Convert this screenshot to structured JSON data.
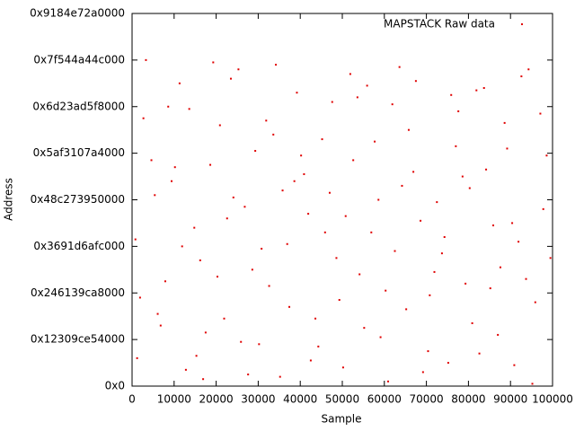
{
  "chart_data": {
    "type": "scatter",
    "x_label": "Sample",
    "y_label": "Address",
    "xlim": [
      0,
      100000
    ],
    "xticks": [
      0,
      10000,
      20000,
      30000,
      40000,
      50000,
      60000,
      70000,
      80000,
      90000,
      100000
    ],
    "ylim": [
      0,
      160000000000000.0
    ],
    "yticks": [
      {
        "value": 0,
        "label": "0x0"
      },
      {
        "value": 20000000000000.0,
        "label": "0x12309ce54000"
      },
      {
        "value": 40000000000000.0,
        "label": "0x246139ca8000"
      },
      {
        "value": 60000000000000.0,
        "label": "0x3691d6afc000"
      },
      {
        "value": 80000000000000.0,
        "label": "0x48c273950000"
      },
      {
        "value": 100000000000000.0,
        "label": "0x5af3107a4000"
      },
      {
        "value": 120000000000000.0,
        "label": "0x6d23ad5f8000"
      },
      {
        "value": 140000000000000.0,
        "label": "0x7f544a44c000"
      },
      {
        "value": 160000000000000.0,
        "label": "0x9184e72a0000"
      }
    ],
    "legend": "top-right",
    "series": [
      {
        "name": "MAPSTACK Raw data",
        "color": "#e00000",
        "x": [
          1200,
          4600,
          7900,
          11300,
          14800,
          17500,
          20900,
          24100,
          27600,
          30800,
          34200,
          37400,
          40900,
          44300,
          47600,
          50800,
          54100,
          57700,
          60900,
          64200,
          67500,
          70800,
          74300,
          77600,
          80900,
          84200,
          87600,
          90900,
          94300,
          97800,
          2700,
          6100,
          9400,
          12800,
          16200,
          19300,
          22600,
          25900,
          29300,
          32600,
          35800,
          39200,
          42500,
          45900,
          49300,
          52600,
          55900,
          59100,
          62500,
          65800,
          69200,
          72500,
          75900,
          79300,
          82600,
          85900,
          89200,
          92600,
          95900,
          99500,
          800,
          3300,
          6800,
          10200,
          13600,
          16900,
          20300,
          23500,
          26800,
          30200,
          33600,
          36900,
          40200,
          43600,
          47000,
          50200,
          53600,
          56900,
          60300,
          63600,
          66900,
          70400,
          73700,
          77000,
          80300,
          83700,
          87000,
          90400,
          93700,
          97100,
          1900,
          5400,
          8600,
          11900,
          15300,
          18600,
          21900,
          25300,
          28600,
          31900,
          35200,
          38600,
          41900,
          45200,
          48600,
          51900,
          55200,
          58600,
          61900,
          65200,
          68600,
          71900,
          75200,
          78600,
          81900,
          85200,
          88600,
          91900,
          95200,
          98600
        ],
        "y": [
          12000000000000.0,
          97000000000000.0,
          45000000000000.0,
          130000000000000.0,
          68000000000000.0,
          23000000000000.0,
          112000000000000.0,
          81000000000000.0,
          5000000000000.0,
          59000000000000.0,
          138000000000000.0,
          34000000000000.0,
          91000000000000.0,
          17000000000000.0,
          122000000000000.0,
          73000000000000.0,
          48000000000000.0,
          105000000000000.0,
          2000000000000.0,
          86000000000000.0,
          131000000000000.0,
          39000000000000.0,
          64000000000000.0,
          118000000000000.0,
          27000000000000.0,
          93000000000000.0,
          51000000000000.0,
          9000000000000.0,
          136000000000000.0,
          76000000000000.0,
          115000000000000.0,
          31000000000000.0,
          88000000000000.0,
          7000000000000.0,
          54000000000000.0,
          139000000000000.0,
          72000000000000.0,
          19000000000000.0,
          101000000000000.0,
          43000000000000.0,
          84000000000000.0,
          126000000000000.0,
          11000000000000.0,
          66000000000000.0,
          37000000000000.0,
          97000000000000.0,
          129000000000000.0,
          21000000000000.0,
          58000000000000.0,
          110000000000000.0,
          6000000000000.0,
          79000000000000.0,
          125000000000000.0,
          44000000000000.0,
          14000000000000.0,
          69000000000000.0,
          102000000000000.0,
          133000000000000.0,
          36000000000000.0,
          55000000000000.0,
          63000000000000.0,
          140000000000000.0,
          26000000000000.0,
          94000000000000.0,
          119000000000000.0,
          3000000000000.0,
          47000000000000.0,
          132000000000000.0,
          77000000000000.0,
          18000000000000.0,
          108000000000000.0,
          61000000000000.0,
          99000000000000.0,
          29000000000000.0,
          83000000000000.0,
          8000000000000.0,
          124000000000000.0,
          66000000000000.0,
          41000000000000.0,
          137000000000000.0,
          92000000000000.0,
          15000000000000.0,
          57000000000000.0,
          103000000000000.0,
          85000000000000.0,
          128000000000000.0,
          22000000000000.0,
          70000000000000.0,
          46000000000000.0,
          117000000000000.0,
          38000000000000.0,
          82000000000000.0,
          120000000000000.0,
          60000000000000.0,
          13000000000000.0,
          95000000000000.0,
          29000000000000.0,
          136000000000000.0,
          50000000000000.0,
          114000000000000.0,
          4000000000000.0,
          88000000000000.0,
          74000000000000.0,
          106000000000000.0,
          55000000000000.0,
          134000000000000.0,
          25000000000000.0,
          80000000000000.0,
          121000000000000.0,
          33000000000000.0,
          71000000000000.0,
          49000000000000.0,
          10000000000000.0,
          90000000000000.0,
          127000000000000.0,
          42000000000000.0,
          113000000000000.0,
          62000000000000.0,
          1000000000000.0,
          99000000000000.0
        ]
      }
    ]
  }
}
